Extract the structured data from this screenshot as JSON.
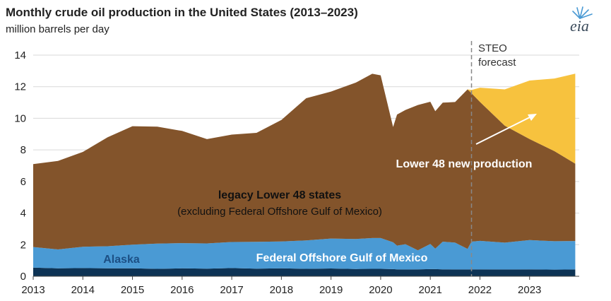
{
  "chart_data": {
    "type": "area",
    "stacked": true,
    "title": "Monthly crude oil production in the United States (2013–2023)",
    "ylabel": "million barrels per day",
    "ylim": [
      0,
      14
    ],
    "yticks": [
      0,
      2,
      4,
      6,
      8,
      10,
      12,
      14
    ],
    "xlim": [
      2013,
      2024
    ],
    "xticks": [
      "2013",
      "2014",
      "2015",
      "2016",
      "2017",
      "2018",
      "2019",
      "2020",
      "2021",
      "2022",
      "2023"
    ],
    "grid": true,
    "forecast_start": 2021.83,
    "x": [
      2013.0,
      2013.5,
      2014.0,
      2014.5,
      2015.0,
      2015.5,
      2016.0,
      2016.5,
      2017.0,
      2017.5,
      2018.0,
      2018.5,
      2019.0,
      2019.5,
      2019.83,
      2020.0,
      2020.25,
      2020.33,
      2020.5,
      2020.75,
      2021.0,
      2021.1,
      2021.25,
      2021.5,
      2021.75,
      2021.83,
      2022.0,
      2022.5,
      2023.0,
      2023.5,
      2023.92
    ],
    "series": [
      {
        "name": "Alaska",
        "color": "#0d3355",
        "values": [
          0.55,
          0.5,
          0.52,
          0.5,
          0.5,
          0.47,
          0.5,
          0.48,
          0.52,
          0.48,
          0.5,
          0.47,
          0.49,
          0.46,
          0.47,
          0.47,
          0.45,
          0.44,
          0.43,
          0.44,
          0.45,
          0.45,
          0.44,
          0.43,
          0.43,
          0.44,
          0.44,
          0.43,
          0.44,
          0.42,
          0.43
        ]
      },
      {
        "name": "Federal Offshore Gulf of Mexico",
        "color": "#4a9ad4",
        "values": [
          1.3,
          1.2,
          1.35,
          1.4,
          1.5,
          1.6,
          1.6,
          1.6,
          1.65,
          1.7,
          1.7,
          1.8,
          1.9,
          1.9,
          1.95,
          1.95,
          1.7,
          1.5,
          1.6,
          1.2,
          1.6,
          1.3,
          1.75,
          1.7,
          1.3,
          1.75,
          1.8,
          1.7,
          1.85,
          1.8,
          1.8
        ]
      },
      {
        "name": "legacy Lower 48 states",
        "color": "#83542b",
        "values": [
          5.25,
          5.6,
          6.0,
          6.9,
          7.5,
          7.4,
          7.1,
          6.6,
          6.8,
          6.9,
          7.7,
          9.0,
          9.3,
          9.9,
          10.4,
          10.3,
          7.3,
          8.3,
          8.5,
          9.2,
          9.0,
          8.7,
          8.8,
          8.9,
          10.1,
          9.4,
          8.8,
          7.4,
          6.4,
          5.7,
          4.9
        ]
      },
      {
        "name": "Lower 48 new production",
        "color": "#f7c23e",
        "values": [
          0,
          0,
          0,
          0,
          0,
          0,
          0,
          0,
          0,
          0,
          0,
          0,
          0,
          0,
          0,
          0,
          0,
          0,
          0,
          0,
          0,
          0,
          0,
          0,
          0,
          0.2,
          0.9,
          2.3,
          3.7,
          4.6,
          5.7
        ]
      }
    ],
    "annotations": {
      "legacy": "legacy Lower 48 states",
      "legacy_sub": "(excluding Federal  Offshore Gulf of Mexico)",
      "gulf": "Federal Offshore Gulf of Mexico",
      "alaska": "Alaska",
      "new_production": "Lower 48 new production",
      "steo_1": "STEO",
      "steo_2": "forecast"
    }
  },
  "logo_text": "eia"
}
